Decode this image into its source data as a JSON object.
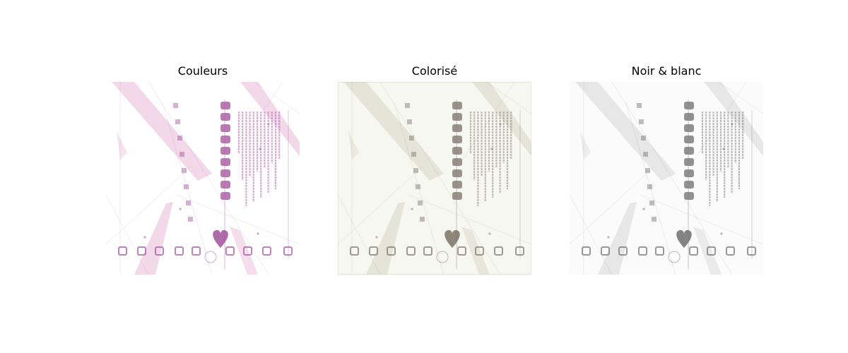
{
  "figure": {
    "panels": [
      {
        "title": "Couleurs",
        "mode": "color",
        "accent": "#a0509a",
        "streak": "#d98fc0",
        "background": "#ffffff"
      },
      {
        "title": "Colorisé",
        "mode": "colorized",
        "accent": "#7a7266",
        "streak": "#bfbfaa",
        "background": "#f7f7f1"
      },
      {
        "title": "Noir & blanc",
        "mode": "grayscale",
        "accent": "#6e6e6e",
        "streak": "#c4c4c4",
        "background": "#fbfbfb"
      }
    ]
  }
}
